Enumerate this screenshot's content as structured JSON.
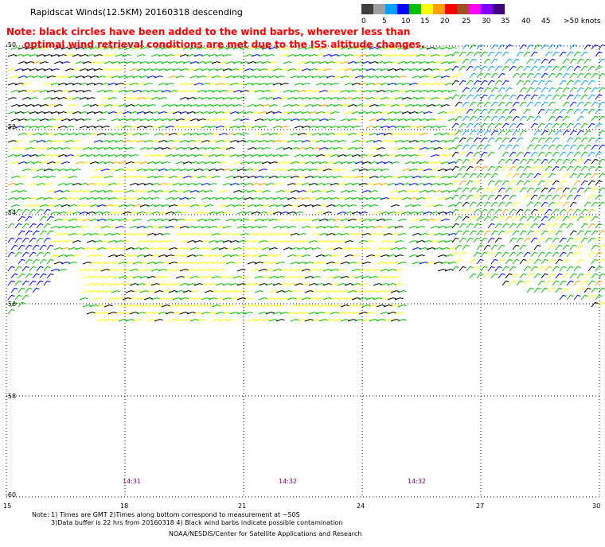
{
  "title": "Rapidscat Winds(12.5KM) 20160318 descending",
  "note_line1": "Note: black circles have been added to the wind barbs, wherever less than",
  "note_line2": "optimal wind retrieval conditions are met due to the ISS altitude changes.",
  "legend": {
    "labels": [
      "0",
      "5",
      "10",
      "15",
      "20",
      "25",
      "30",
      "35",
      "40",
      "45",
      ">50 knots"
    ],
    "colors": [
      "#404040",
      "#a0a0a0",
      "#00a0ff",
      "#0000ff",
      "#00c000",
      "#ffff00",
      "#ffa000",
      "#ff0000",
      "#a05020",
      "#ff00ff",
      "#8000ff",
      "#400080"
    ]
  },
  "lat_labels": [
    "-50",
    "-52",
    "-54",
    "-56",
    "-58",
    "-60"
  ],
  "lon_labels": [
    "15",
    "18",
    "21",
    "24",
    "27",
    "30"
  ],
  "time_labels": [
    "14:31",
    "14:32",
    "14:32"
  ],
  "footer": {
    "line1": "Note: 1) Times are GMT 2)Times along bottom correspond to measurement at ~50S",
    "line2": "3)Data buffer is 22 hrs from 20160318 4) Black wind barbs indicate possible contamination",
    "line3": "NOAA/NESDIS/Center for Satellite Applications and Research"
  },
  "map": {
    "lat_range": [
      -60,
      -50
    ],
    "lon_range": [
      15,
      30
    ],
    "grid": "dotted"
  }
}
